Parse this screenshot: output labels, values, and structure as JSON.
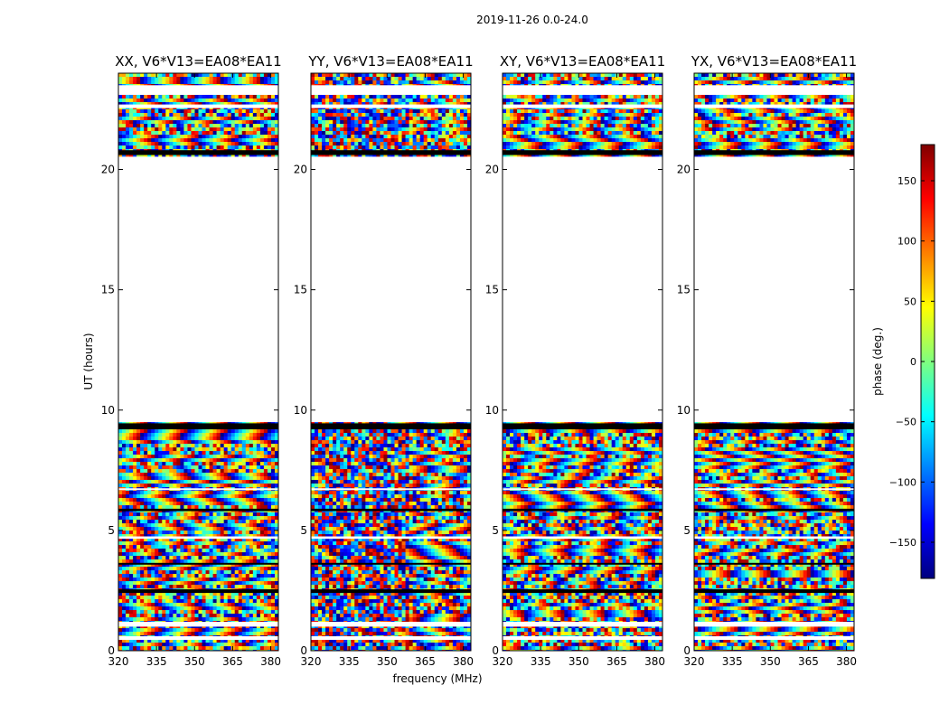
{
  "figure": {
    "suptitle": "2019-11-26 0.0-24.0",
    "xlabel": "frequency (MHz)",
    "ylabel": "UT (hours)"
  },
  "chart_data": {
    "type": "heatmap",
    "x_ticks": [
      "320",
      "335",
      "350",
      "365",
      "380"
    ],
    "y_ticks": [
      "0",
      "5",
      "10",
      "15",
      "20"
    ],
    "xlim": [
      320,
      383
    ],
    "ylim": [
      0,
      24
    ],
    "panels": [
      {
        "title": "XX, V6*V13=EA08*EA11",
        "bias": 0.0
      },
      {
        "title": "YY, V6*V13=EA08*EA11",
        "bias": 0.35
      },
      {
        "title": "XY, V6*V13=EA08*EA11",
        "bias": 0.0
      },
      {
        "title": "YX, V6*V13=EA08*EA11",
        "bias": 0.0
      }
    ],
    "data_blocks_hours": [
      [
        0.0,
        9.5
      ],
      [
        20.6,
        24.0
      ]
    ],
    "gap_hours": [
      [
        9.5,
        20.6
      ]
    ],
    "black_bands_hours": [
      [
        9.2,
        9.45
      ],
      [
        20.6,
        20.8
      ],
      [
        2.4,
        2.55
      ],
      [
        5.8,
        5.9
      ],
      [
        3.6,
        3.65
      ]
    ],
    "white_rows_hours": [
      [
        23.1,
        23.5
      ],
      [
        1.0,
        1.2
      ],
      [
        0.45,
        0.6
      ],
      [
        4.65,
        4.75
      ],
      [
        22.55,
        22.7
      ],
      [
        6.7,
        6.75
      ]
    ],
    "colorbar": {
      "label": "phase (deg.)",
      "ticks": [
        "150",
        "100",
        "50",
        "0",
        "−50",
        "−100",
        "−150"
      ],
      "range": [
        -180,
        180
      ],
      "colormap": "jet",
      "stops": [
        "#00007f",
        "#0000ff",
        "#007fff",
        "#00ffff",
        "#7fff7f",
        "#ffff00",
        "#ff7f00",
        "#ff0000",
        "#7f0000"
      ]
    }
  }
}
